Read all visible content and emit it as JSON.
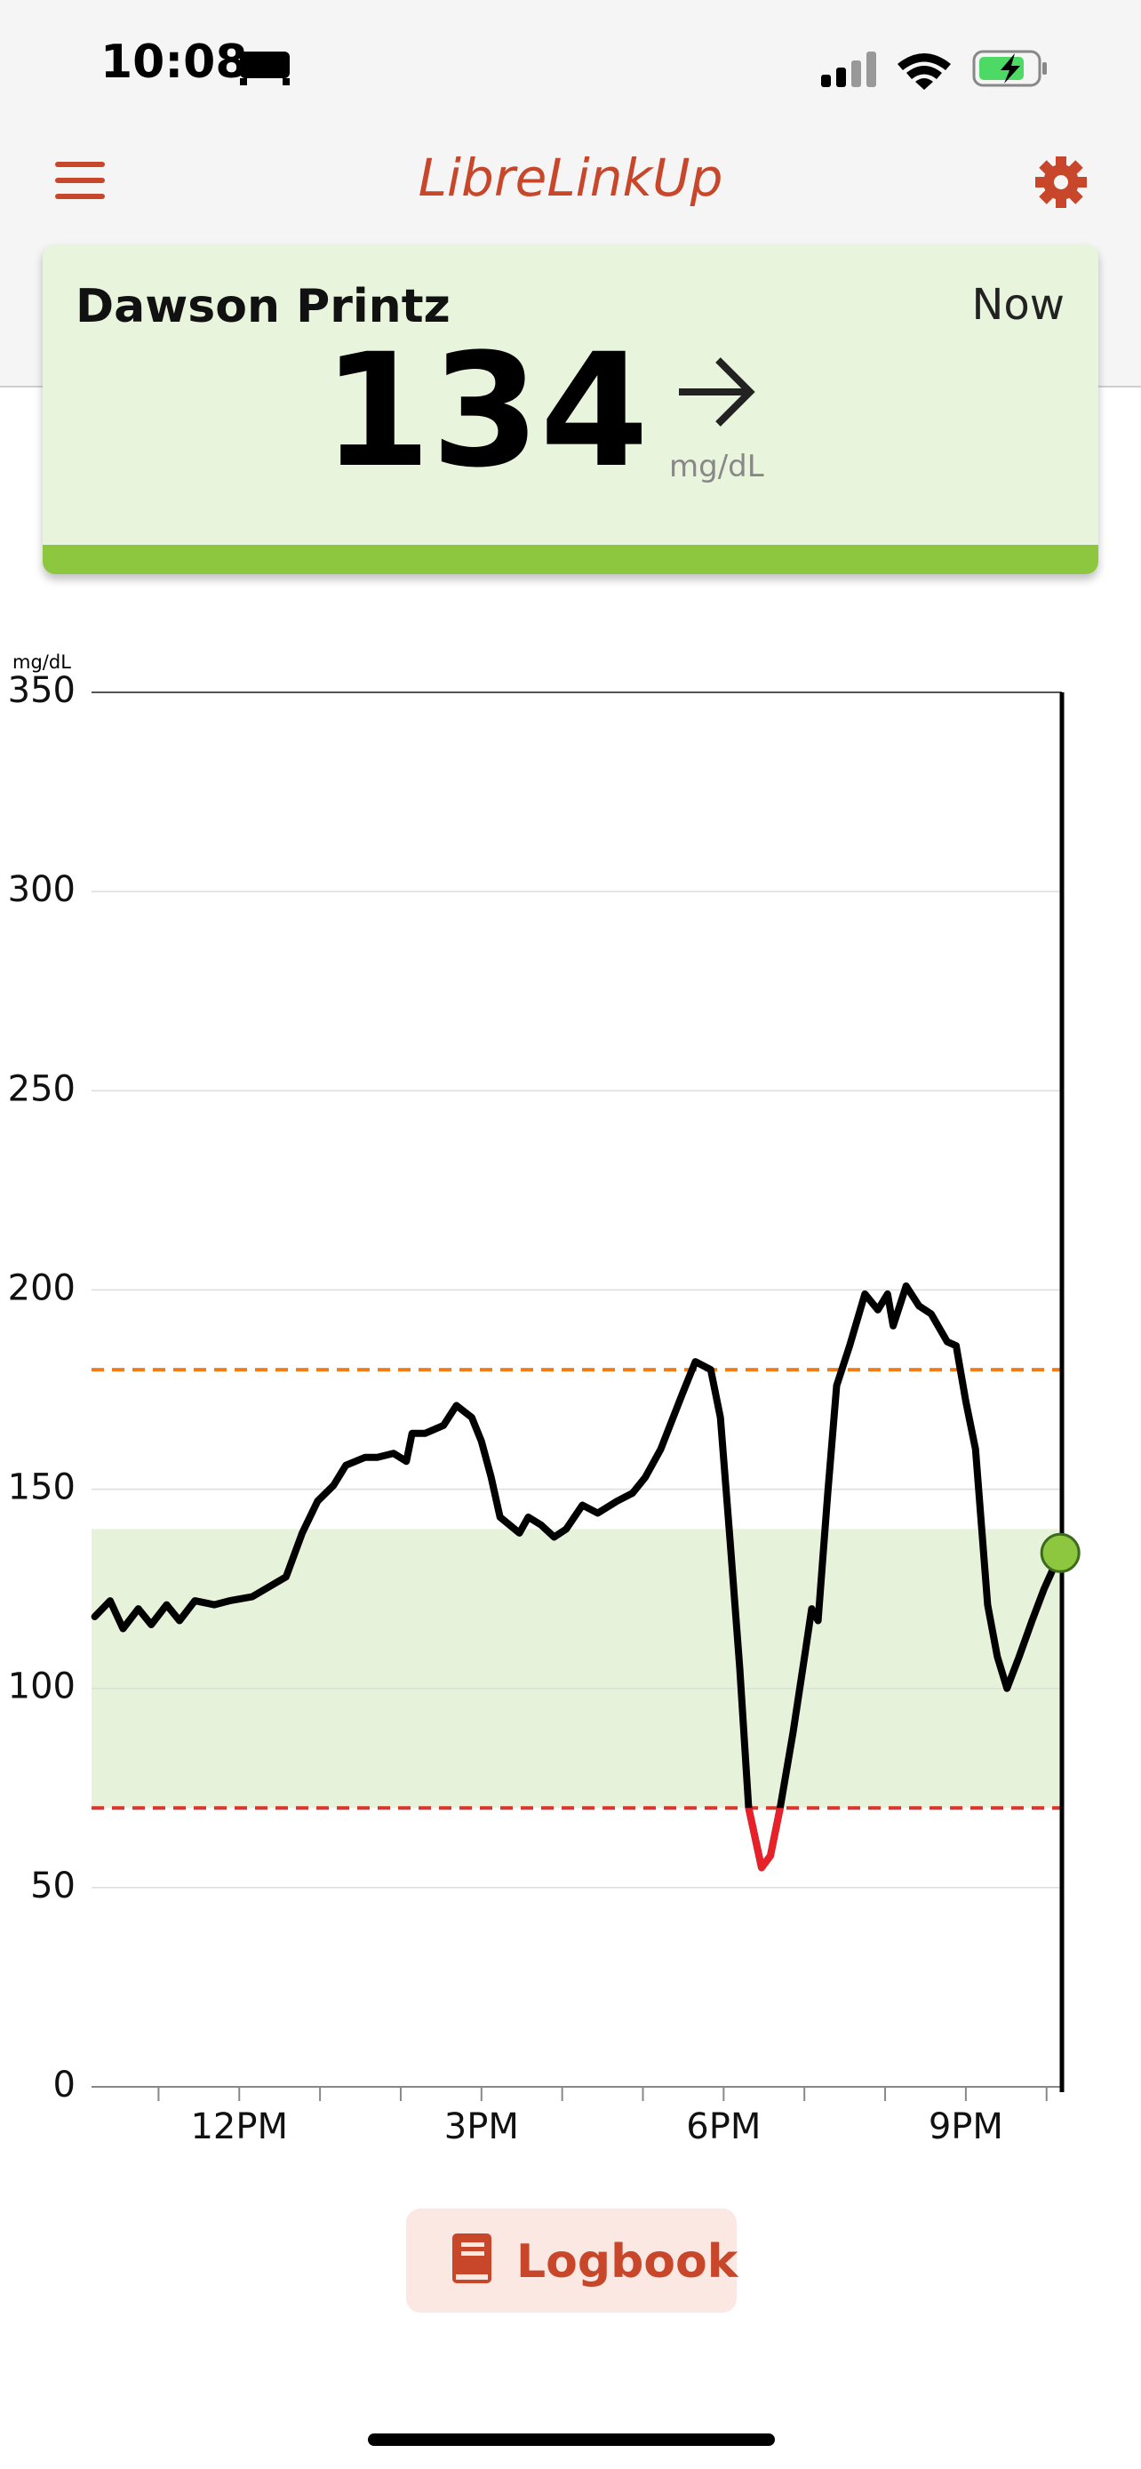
{
  "status_bar": {
    "time": "10:08"
  },
  "header": {
    "title": "LibreLinkUp"
  },
  "card": {
    "name": "Dawson Printz",
    "when": "Now",
    "value": 134,
    "unit": "mg/dL"
  },
  "chart_data": {
    "type": "line",
    "y_unit": "mg/dL",
    "x": [
      10.21,
      10.4,
      10.56,
      10.75,
      10.91,
      11.1,
      11.26,
      11.45,
      11.69,
      11.88,
      12.16,
      12.58,
      12.78,
      12.97,
      13.17,
      13.32,
      13.56,
      13.71,
      13.91,
      14.07,
      14.14,
      14.3,
      14.53,
      14.69,
      14.88,
      15.0,
      15.12,
      15.23,
      15.47,
      15.58,
      15.74,
      15.9,
      16.05,
      16.25,
      16.44,
      16.68,
      16.87,
      17.03,
      17.22,
      17.49,
      17.65,
      17.84,
      17.96,
      18.08,
      18.2,
      18.31,
      18.47,
      18.58,
      18.7,
      18.86,
      19.01,
      19.09,
      19.17,
      19.29,
      19.4,
      19.56,
      19.75,
      19.91,
      20.03,
      20.1,
      20.26,
      20.42,
      20.57,
      20.77,
      20.88,
      21.0,
      21.12,
      21.27,
      21.39,
      21.51,
      21.66,
      21.82,
      21.97,
      22.17
    ],
    "series": [
      {
        "color": "#000000",
        "low_color": "#e8202a",
        "values": [
          118,
          122,
          115,
          120,
          116,
          121,
          117,
          122,
          121,
          122,
          123,
          128,
          139,
          147,
          151,
          156,
          158,
          158,
          159,
          157,
          164,
          164,
          166,
          171,
          168,
          162,
          153,
          143,
          139,
          143,
          141,
          138,
          140,
          146,
          144,
          147,
          149,
          153,
          160,
          174,
          182,
          180,
          168,
          137,
          105,
          70,
          55,
          58,
          70,
          89,
          109,
          120,
          117,
          149,
          176,
          186,
          199,
          195,
          199,
          191,
          201,
          196,
          194,
          187,
          186,
          172,
          160,
          121,
          108,
          100,
          108,
          117,
          125,
          134
        ]
      }
    ],
    "current_color": "#8dc63f",
    "xlim": [
      10.17,
      22.19
    ],
    "xticks": [
      {
        "value": 12,
        "label": "12PM"
      },
      {
        "value": 15,
        "label": "3PM"
      },
      {
        "value": 18,
        "label": "6PM"
      },
      {
        "value": 21,
        "label": "9PM"
      }
    ],
    "minor_xticks": [
      11,
      13,
      14,
      16,
      17,
      19,
      20,
      22
    ],
    "ylim": [
      0,
      350
    ],
    "yticks": [
      0,
      50,
      100,
      150,
      200,
      250,
      300,
      350
    ],
    "grid": true,
    "target_range": [
      70,
      140
    ],
    "target_color": "#e6f3da",
    "high_line": 180,
    "high_color": "#ef7d1a",
    "low_line": 70,
    "low_color": "#e0332a"
  },
  "button": {
    "label": "Logbook"
  }
}
